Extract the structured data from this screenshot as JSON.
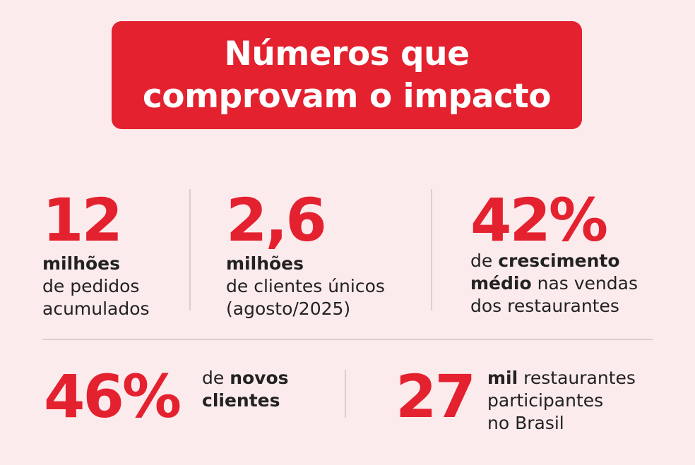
{
  "title": {
    "line1": "Números que",
    "line2": "comprovam o impacto"
  },
  "stats": [
    {
      "value": "12",
      "bold": "milhões",
      "line2": "de pedidos",
      "line3": "acumulados"
    },
    {
      "value": "2,6",
      "bold": "milhões",
      "line2": "de clientes únicos",
      "line3": "(agosto/2025)"
    },
    {
      "value": "42%",
      "pre": "de ",
      "bold1": "crescimento",
      "bold2": "médio",
      "post2": " nas vendas",
      "line3": "dos restaurantes"
    },
    {
      "value": "46%",
      "pre": "de ",
      "bold1": "novos",
      "bold2": "clientes"
    },
    {
      "value": "27",
      "bold": "mil",
      "post": " restaurantes",
      "line2": "participantes",
      "line3": "no Brasil"
    }
  ],
  "colors": {
    "accent": "#e4212f",
    "background": "#fcebec",
    "divider": "#d9cfd0"
  }
}
